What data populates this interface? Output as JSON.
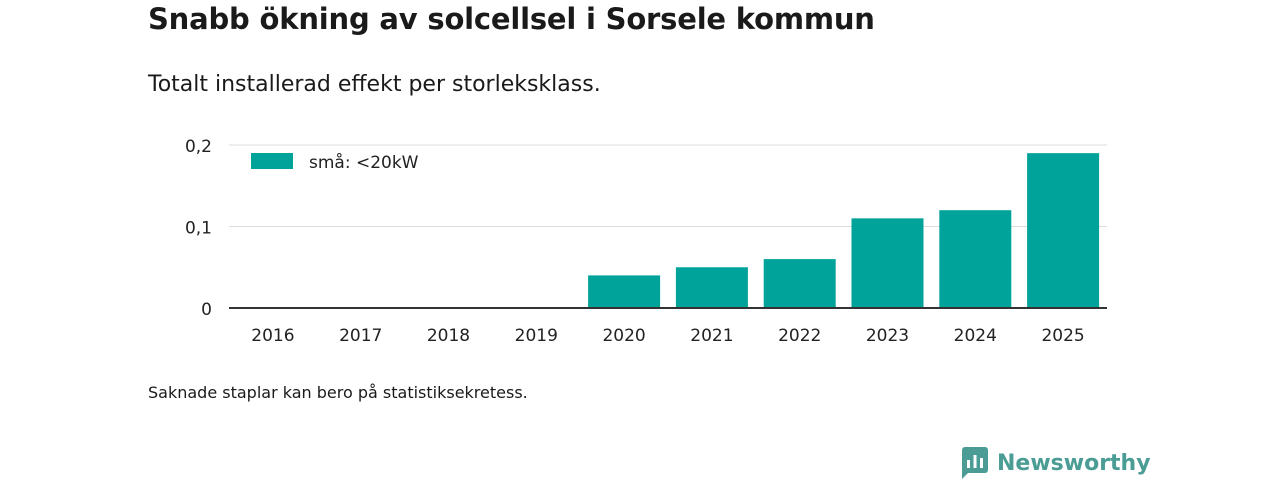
{
  "header": {
    "title": "Snabb ökning av solcellsel i Sorsele kommun",
    "subtitle": "Totalt installerad effekt per storleksklass."
  },
  "footer": {
    "note": "Saknade staplar kan bero på statistiksekretess.",
    "brand": "Newsworthy"
  },
  "colors": {
    "bar": "#00a39a",
    "grid": "#dddddd",
    "axis": "#333333",
    "brand": "#4a9c95"
  },
  "chart_data": {
    "type": "bar",
    "title": "Snabb ökning av solcellsel i Sorsele kommun",
    "subtitle": "Totalt installerad effekt per storleksklass.",
    "xlabel": "",
    "ylabel": "",
    "categories": [
      "2016",
      "2017",
      "2018",
      "2019",
      "2020",
      "2021",
      "2022",
      "2023",
      "2024",
      "2025"
    ],
    "series": [
      {
        "name": "små: <20kW",
        "values": [
          0,
          0,
          0,
          0,
          0.04,
          0.05,
          0.06,
          0.11,
          0.12,
          0.19
        ]
      }
    ],
    "ylim": [
      0,
      0.2
    ],
    "yticks": [
      0,
      0.1,
      0.2
    ],
    "ytick_labels": [
      "0",
      "0,1",
      "0,2"
    ],
    "grid": true,
    "legend_position": "top-left"
  }
}
